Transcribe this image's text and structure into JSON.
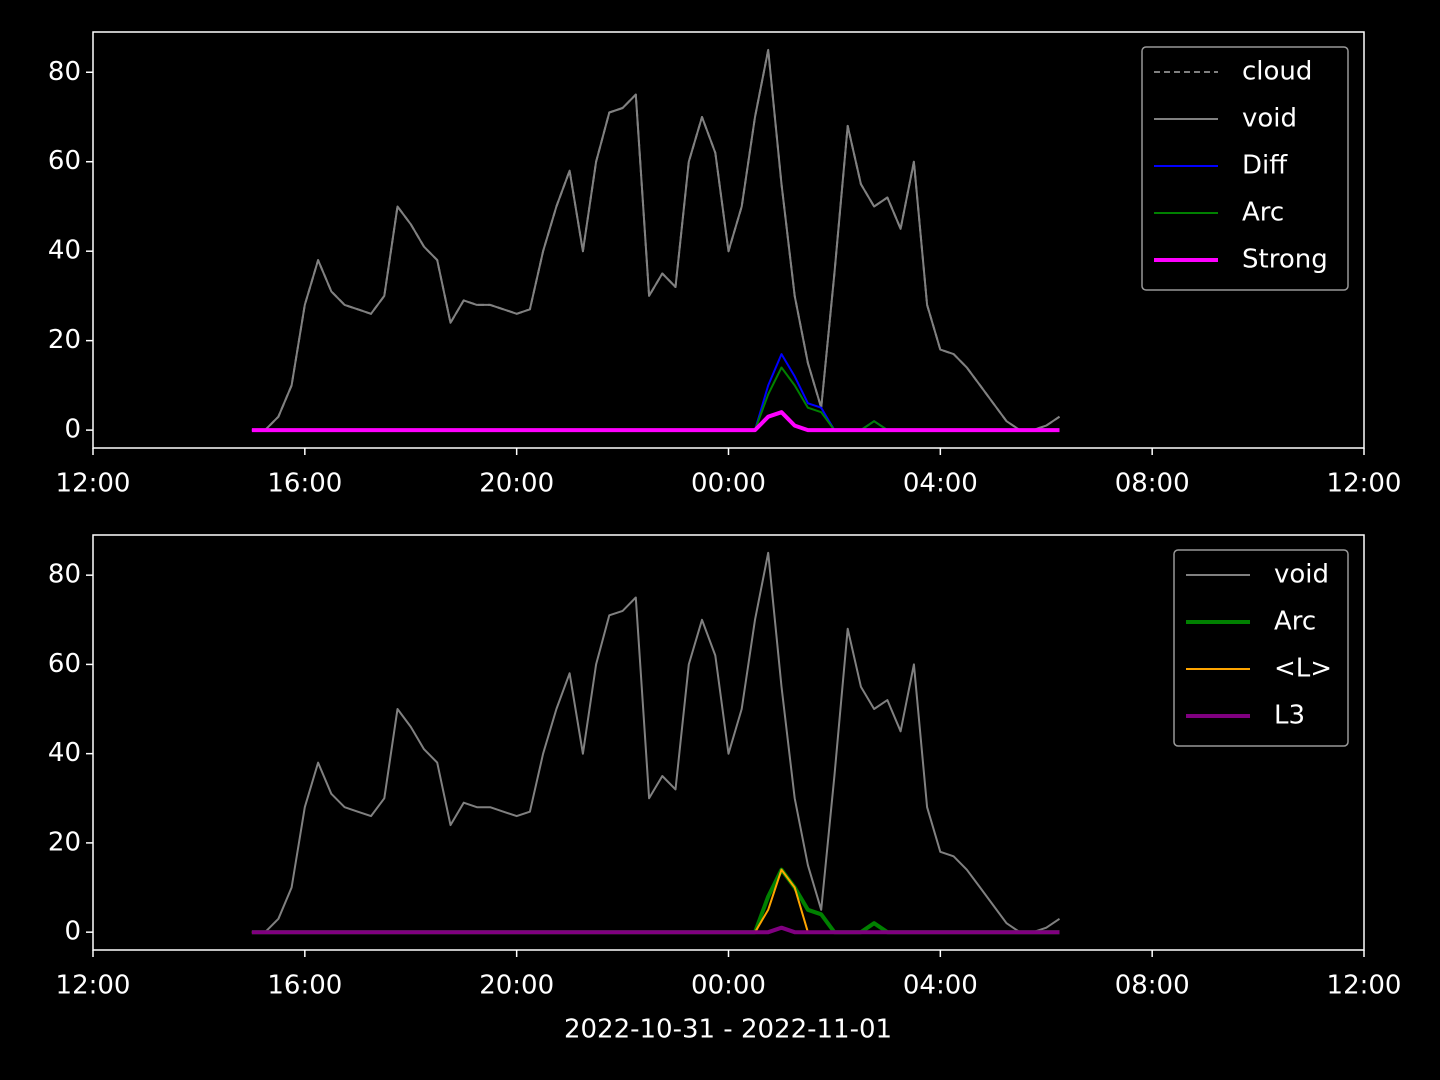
{
  "chart_data": [
    {
      "type": "line",
      "x": [
        15,
        15.25,
        15.5,
        15.75,
        16,
        16.25,
        16.5,
        16.75,
        17,
        17.25,
        17.5,
        17.75,
        18,
        18.25,
        18.5,
        18.75,
        19,
        19.25,
        19.5,
        19.75,
        20,
        20.25,
        20.5,
        20.75,
        21,
        21.25,
        21.5,
        21.75,
        22,
        22.25,
        22.5,
        22.75,
        23,
        23.25,
        23.5,
        23.75,
        24,
        24.25,
        24.5,
        24.75,
        25,
        25.25,
        25.5,
        25.75,
        26,
        26.25,
        26.5,
        26.75,
        27,
        27.25,
        27.5,
        27.75,
        28,
        28.25,
        28.5,
        28.75,
        29,
        29.25,
        29.5,
        29.75,
        30,
        30.25
      ],
      "series": [
        {
          "name": "cloud",
          "color": "#808080",
          "linestyle": "dashed",
          "linewidth": 2,
          "values": [
            0,
            0,
            3,
            10,
            28,
            38,
            31,
            28,
            27,
            26,
            30,
            50,
            46,
            41,
            38,
            24,
            29,
            28,
            28,
            27,
            26,
            27,
            40,
            50,
            58,
            40,
            60,
            71,
            72,
            75,
            30,
            35,
            32,
            60,
            70,
            62,
            40,
            50,
            70,
            85,
            55,
            30,
            15,
            5,
            35,
            68,
            55,
            50,
            52,
            45,
            60,
            28,
            18,
            17,
            14,
            10,
            6,
            2,
            0,
            0,
            1,
            3
          ]
        },
        {
          "name": "void",
          "color": "#808080",
          "linestyle": "solid",
          "linewidth": 2,
          "values": [
            0,
            0,
            3,
            10,
            28,
            38,
            31,
            28,
            27,
            26,
            30,
            50,
            46,
            41,
            38,
            24,
            29,
            28,
            28,
            27,
            26,
            27,
            40,
            50,
            58,
            40,
            60,
            71,
            72,
            75,
            30,
            35,
            32,
            60,
            70,
            62,
            40,
            50,
            70,
            85,
            55,
            30,
            15,
            5,
            35,
            68,
            55,
            50,
            52,
            45,
            60,
            28,
            18,
            17,
            14,
            10,
            6,
            2,
            0,
            0,
            1,
            3
          ]
        },
        {
          "name": "Diff",
          "color": "#0000ff",
          "linestyle": "solid",
          "linewidth": 2,
          "values": [
            0,
            0,
            0,
            0,
            0,
            0,
            0,
            0,
            0,
            0,
            0,
            0,
            0,
            0,
            0,
            0,
            0,
            0,
            0,
            0,
            0,
            0,
            0,
            0,
            0,
            0,
            0,
            0,
            0,
            0,
            0,
            0,
            0,
            0,
            0,
            0,
            0,
            0,
            0,
            10,
            17,
            12,
            6,
            5,
            0,
            0,
            0,
            2,
            0,
            0,
            0,
            0,
            0,
            0,
            0,
            0,
            0,
            0,
            0,
            0,
            0,
            0
          ]
        },
        {
          "name": "Arc",
          "color": "#008000",
          "linestyle": "solid",
          "linewidth": 2,
          "values": [
            0,
            0,
            0,
            0,
            0,
            0,
            0,
            0,
            0,
            0,
            0,
            0,
            0,
            0,
            0,
            0,
            0,
            0,
            0,
            0,
            0,
            0,
            0,
            0,
            0,
            0,
            0,
            0,
            0,
            0,
            0,
            0,
            0,
            0,
            0,
            0,
            0,
            0,
            0,
            8,
            14,
            10,
            5,
            4,
            0,
            0,
            0,
            2,
            0,
            0,
            0,
            0,
            0,
            0,
            0,
            0,
            0,
            0,
            0,
            0,
            0,
            0
          ]
        },
        {
          "name": "Strong",
          "color": "#ff00ff",
          "linestyle": "solid",
          "linewidth": 4,
          "values": [
            0,
            0,
            0,
            0,
            0,
            0,
            0,
            0,
            0,
            0,
            0,
            0,
            0,
            0,
            0,
            0,
            0,
            0,
            0,
            0,
            0,
            0,
            0,
            0,
            0,
            0,
            0,
            0,
            0,
            0,
            0,
            0,
            0,
            0,
            0,
            0,
            0,
            0,
            0,
            3,
            4,
            1,
            0,
            0,
            0,
            0,
            0,
            0,
            0,
            0,
            0,
            0,
            0,
            0,
            0,
            0,
            0,
            0,
            0,
            0,
            0,
            0
          ]
        }
      ],
      "xlim": [
        12,
        36
      ],
      "xticks": [
        {
          "value": 12,
          "label": "12:00"
        },
        {
          "value": 16,
          "label": "16:00"
        },
        {
          "value": 20,
          "label": "20:00"
        },
        {
          "value": 24,
          "label": "00:00"
        },
        {
          "value": 28,
          "label": "04:00"
        },
        {
          "value": 32,
          "label": "08:00"
        },
        {
          "value": 36,
          "label": "12:00"
        }
      ],
      "ylim": [
        -4,
        89
      ],
      "yticks": [
        0,
        20,
        40,
        60,
        80
      ],
      "legend": "upper right"
    },
    {
      "type": "line",
      "x": [
        15,
        15.25,
        15.5,
        15.75,
        16,
        16.25,
        16.5,
        16.75,
        17,
        17.25,
        17.5,
        17.75,
        18,
        18.25,
        18.5,
        18.75,
        19,
        19.25,
        19.5,
        19.75,
        20,
        20.25,
        20.5,
        20.75,
        21,
        21.25,
        21.5,
        21.75,
        22,
        22.25,
        22.5,
        22.75,
        23,
        23.25,
        23.5,
        23.75,
        24,
        24.25,
        24.5,
        24.75,
        25,
        25.25,
        25.5,
        25.75,
        26,
        26.25,
        26.5,
        26.75,
        27,
        27.25,
        27.5,
        27.75,
        28,
        28.25,
        28.5,
        28.75,
        29,
        29.25,
        29.5,
        29.75,
        30,
        30.25
      ],
      "series": [
        {
          "name": "void",
          "color": "#808080",
          "linestyle": "solid",
          "linewidth": 2,
          "values": [
            0,
            0,
            3,
            10,
            28,
            38,
            31,
            28,
            27,
            26,
            30,
            50,
            46,
            41,
            38,
            24,
            29,
            28,
            28,
            27,
            26,
            27,
            40,
            50,
            58,
            40,
            60,
            71,
            72,
            75,
            30,
            35,
            32,
            60,
            70,
            62,
            40,
            50,
            70,
            85,
            55,
            30,
            15,
            5,
            35,
            68,
            55,
            50,
            52,
            45,
            60,
            28,
            18,
            17,
            14,
            10,
            6,
            2,
            0,
            0,
            1,
            3
          ]
        },
        {
          "name": "Arc",
          "color": "#008000",
          "linestyle": "solid",
          "linewidth": 4,
          "values": [
            0,
            0,
            0,
            0,
            0,
            0,
            0,
            0,
            0,
            0,
            0,
            0,
            0,
            0,
            0,
            0,
            0,
            0,
            0,
            0,
            0,
            0,
            0,
            0,
            0,
            0,
            0,
            0,
            0,
            0,
            0,
            0,
            0,
            0,
            0,
            0,
            0,
            0,
            0,
            8,
            14,
            10,
            5,
            4,
            0,
            0,
            0,
            2,
            0,
            0,
            0,
            0,
            0,
            0,
            0,
            0,
            0,
            0,
            0,
            0,
            0,
            0
          ]
        },
        {
          "name": "<L>",
          "color": "#ffa500",
          "linestyle": "solid",
          "linewidth": 2,
          "values": [
            0,
            0,
            0,
            0,
            0,
            0,
            0,
            0,
            0,
            0,
            0,
            0,
            0,
            0,
            0,
            0,
            0,
            0,
            0,
            0,
            0,
            0,
            0,
            0,
            0,
            0,
            0,
            0,
            0,
            0,
            0,
            0,
            0,
            0,
            0,
            0,
            0,
            0,
            0,
            5,
            14,
            10,
            0,
            0,
            0,
            0,
            0,
            0,
            0,
            0,
            0,
            0,
            0,
            0,
            0,
            0,
            0,
            0,
            0,
            0,
            0,
            0
          ]
        },
        {
          "name": "L3",
          "color": "#800080",
          "linestyle": "solid",
          "linewidth": 4,
          "values": [
            0,
            0,
            0,
            0,
            0,
            0,
            0,
            0,
            0,
            0,
            0,
            0,
            0,
            0,
            0,
            0,
            0,
            0,
            0,
            0,
            0,
            0,
            0,
            0,
            0,
            0,
            0,
            0,
            0,
            0,
            0,
            0,
            0,
            0,
            0,
            0,
            0,
            0,
            0,
            0,
            1,
            0,
            0,
            0,
            0,
            0,
            0,
            0,
            0,
            0,
            0,
            0,
            0,
            0,
            0,
            0,
            0,
            0,
            0,
            0,
            0,
            0
          ]
        }
      ],
      "xlabel": "2022-10-31 - 2022-11-01",
      "xlim": [
        12,
        36
      ],
      "xticks": [
        {
          "value": 12,
          "label": "12:00"
        },
        {
          "value": 16,
          "label": "16:00"
        },
        {
          "value": 20,
          "label": "20:00"
        },
        {
          "value": 24,
          "label": "00:00"
        },
        {
          "value": 28,
          "label": "04:00"
        },
        {
          "value": 32,
          "label": "08:00"
        },
        {
          "value": 36,
          "label": "12:00"
        }
      ],
      "ylim": [
        -4,
        89
      ],
      "yticks": [
        0,
        20,
        40,
        60,
        80
      ],
      "legend": "upper right"
    }
  ]
}
